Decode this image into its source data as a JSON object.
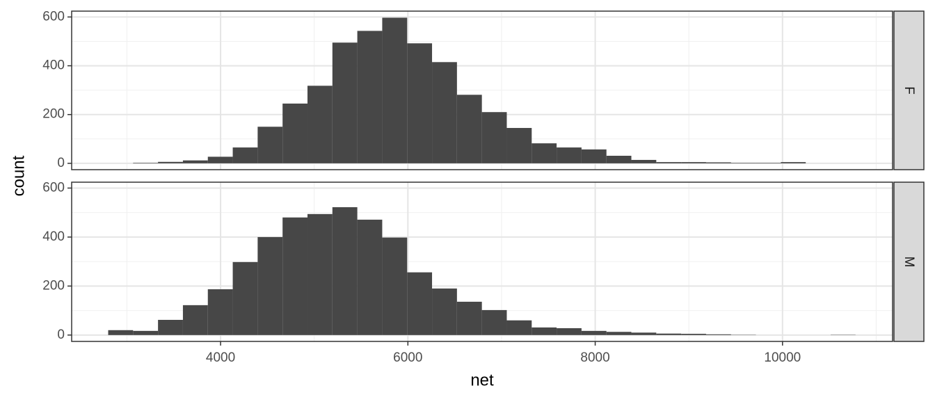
{
  "chart_data": {
    "type": "histogram",
    "x_label": "net",
    "y_label": "count",
    "color": "#474747",
    "bins": [
      2800,
      3066,
      3332,
      3598,
      3864,
      4130,
      4396,
      4662,
      4928,
      5194,
      5460,
      5726,
      5992,
      6258,
      6524,
      6790,
      7056,
      7322,
      7588,
      7854,
      8120,
      8386,
      8652,
      8918,
      9184,
      9450,
      9716,
      9982,
      10248,
      10514,
      10780
    ],
    "series": [
      {
        "name": "F",
        "values": [
          0,
          2,
          6,
          12,
          27,
          65,
          150,
          245,
          318,
          495,
          543,
          597,
          492,
          415,
          281,
          210,
          145,
          82,
          65,
          57,
          31,
          14,
          5,
          5,
          4,
          2,
          2,
          5,
          0,
          0
        ]
      },
      {
        "name": "M",
        "values": [
          20,
          17,
          62,
          122,
          187,
          298,
          400,
          480,
          494,
          522,
          471,
          398,
          256,
          190,
          136,
          102,
          60,
          31,
          28,
          17,
          13,
          10,
          6,
          5,
          3,
          1,
          0,
          0,
          0,
          1
        ]
      }
    ],
    "xlim": [
      2410,
      11175
    ],
    "xticks": [
      4000,
      6000,
      8000,
      10000
    ],
    "x_minor_grid": [
      3000,
      5000,
      7000,
      9000,
      11000
    ],
    "ylim": [
      -26,
      624
    ],
    "yticks": [
      0,
      200,
      400,
      600
    ],
    "y_minor_grid": [
      100,
      300,
      500
    ],
    "grid": true
  }
}
